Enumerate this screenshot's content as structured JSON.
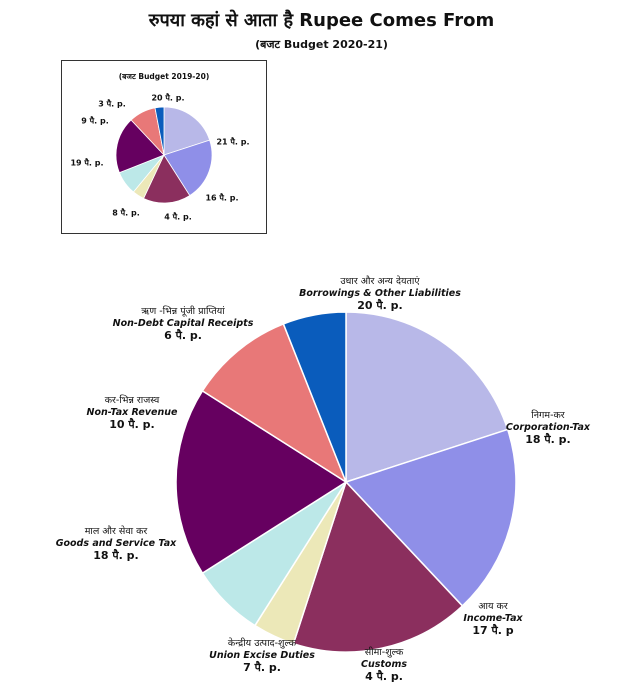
{
  "header": {
    "title": "रुपया कहां से आता है Rupee Comes From",
    "subtitle": "(बजट Budget 2020-21)"
  },
  "colors": {
    "borrowings": "#b8b8e8",
    "corporation_tax": "#8f8fe8",
    "income_tax": "#8b2f5e",
    "customs": "#ece8b8",
    "union_excise": "#bce8e8",
    "gst": "#660060",
    "non_tax": "#e87878",
    "non_debt": "#0a5cbc"
  },
  "chart_data": [
    {
      "type": "pie",
      "title": "(बजट Budget 2020-21)",
      "unit": "पै. p.",
      "start_angle_deg": -90,
      "slices": [
        {
          "key": "borrowings",
          "hindi": "उधार और अन्य देयताएं",
          "label": "Borrowings & Other Liabilities",
          "value": 20,
          "value_text": "20 पै. p."
        },
        {
          "key": "corporation_tax",
          "hindi": "निगम-कर",
          "label": "Corporation-Tax",
          "value": 18,
          "value_text": "18 पै. p."
        },
        {
          "key": "income_tax",
          "hindi": "आय कर",
          "label": "Income-Tax",
          "value": 17,
          "value_text": "17 पै. p"
        },
        {
          "key": "customs",
          "hindi": "सीमा-शुल्क",
          "label": "Customs",
          "value": 4,
          "value_text": "4 पै. p."
        },
        {
          "key": "union_excise",
          "hindi": "केन्द्रीय उत्पाद-शुल्क",
          "label": "Union Excise Duties",
          "value": 7,
          "value_text": "7 पै. p."
        },
        {
          "key": "gst",
          "hindi": "माल और सेवा कर",
          "label": "Goods and Service Tax",
          "value": 18,
          "value_text": "18 पै. p."
        },
        {
          "key": "non_tax",
          "hindi": "कर-भिन्न राजस्व",
          "label": "Non-Tax Revenue",
          "value": 10,
          "value_text": "10 पै. p."
        },
        {
          "key": "non_debt",
          "hindi": "ऋण -भिन्न पूंजी प्राप्तियां",
          "label": "Non-Debt Capital Receipts",
          "value": 6,
          "value_text": "6 पै. p."
        }
      ]
    },
    {
      "type": "pie",
      "title": "(बजट Budget 2019-20)",
      "unit": "पै. p.",
      "start_angle_deg": -90,
      "slices": [
        {
          "key": "borrowings",
          "value": 20,
          "value_text": "20 पै. p."
        },
        {
          "key": "corporation_tax",
          "value": 21,
          "value_text": "21 पै. p."
        },
        {
          "key": "income_tax",
          "value": 16,
          "value_text": "16 पै. p."
        },
        {
          "key": "customs",
          "value": 4,
          "value_text": "4 पै. p."
        },
        {
          "key": "union_excise",
          "value": 8,
          "value_text": "8 पै. p."
        },
        {
          "key": "gst",
          "value": 19,
          "value_text": "19 पै. p."
        },
        {
          "key": "non_tax",
          "value": 9,
          "value_text": "9 पै. p."
        },
        {
          "key": "non_debt",
          "value": 3,
          "value_text": "3 पै. p."
        }
      ]
    }
  ]
}
